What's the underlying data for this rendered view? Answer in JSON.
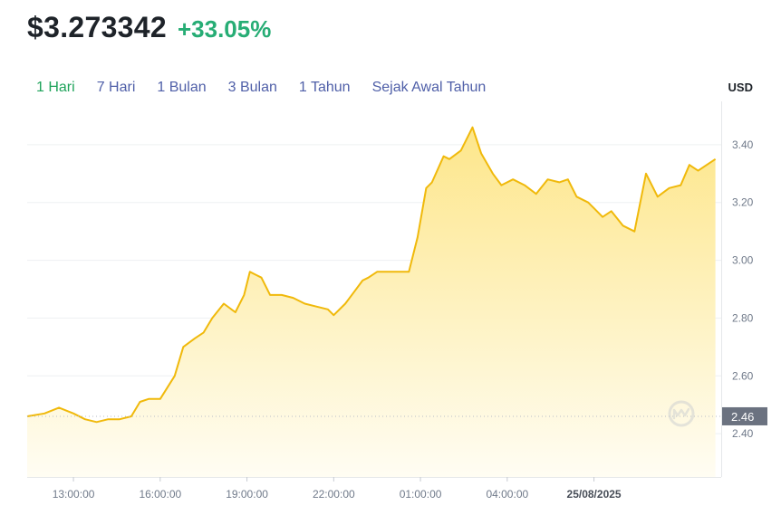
{
  "header": {
    "price": "$3.273342",
    "change": "+33.05%"
  },
  "tabs": [
    {
      "label": "1 Hari",
      "active": true
    },
    {
      "label": "7 Hari",
      "active": false
    },
    {
      "label": "1 Bulan",
      "active": false
    },
    {
      "label": "3 Bulan",
      "active": false
    },
    {
      "label": "1 Tahun",
      "active": false
    },
    {
      "label": "Sejak Awal Tahun",
      "active": false
    }
  ],
  "currency": "USD",
  "current_price_tag": "2.46",
  "colors": {
    "line": "#f0b90b",
    "fill_top": "#fde68a",
    "fill_bottom": "#fffdf3",
    "tag_bg": "#6b7280",
    "positive": "#27ad75",
    "active_tab": "#1ea35a",
    "tab": "#4f5fa8"
  },
  "icons": {
    "watermark": "coinmarketcap-logo-icon"
  },
  "chart_data": {
    "type": "area",
    "ylabel": "USD",
    "ylim": [
      2.25,
      3.55
    ],
    "y_ticks": [
      "3.40",
      "3.20",
      "3.00",
      "2.80",
      "2.60",
      "2.40"
    ],
    "x_ticks": [
      "13:00:00",
      "16:00:00",
      "19:00:00",
      "22:00:00",
      "01:00:00",
      "04:00:00",
      "25/08/2025"
    ],
    "x_tick_hours": [
      13,
      16,
      19,
      22,
      25,
      28,
      31
    ],
    "xlim_hours": [
      11.4,
      35.4
    ],
    "reference_line": 2.46,
    "series": [
      {
        "x": [
          11.4,
          12.0,
          12.5,
          13.0,
          13.4,
          13.8,
          14.2,
          14.6,
          15.0,
          15.3,
          15.6,
          16.0,
          16.5,
          16.8,
          17.2,
          17.5,
          17.8,
          18.2,
          18.6,
          18.9,
          19.1,
          19.3,
          19.5,
          19.8,
          20.2,
          20.6,
          21.0,
          21.4,
          21.8,
          22.0,
          22.4,
          22.7,
          23.0,
          23.2,
          23.5,
          24.0,
          24.6,
          24.9,
          25.2,
          25.4,
          25.8,
          26.0,
          26.4,
          26.8,
          27.1,
          27.5,
          27.8,
          28.2,
          28.6,
          29.0,
          29.4,
          29.8,
          30.1,
          30.4,
          30.8,
          31.0,
          31.3,
          31.6,
          32.0,
          32.4,
          32.8,
          33.2,
          33.6,
          34.0,
          34.3,
          34.6,
          34.9,
          35.2
        ],
        "y": [
          2.46,
          2.47,
          2.49,
          2.47,
          2.45,
          2.44,
          2.45,
          2.45,
          2.46,
          2.51,
          2.52,
          2.52,
          2.6,
          2.7,
          2.73,
          2.75,
          2.8,
          2.85,
          2.82,
          2.88,
          2.96,
          2.95,
          2.94,
          2.88,
          2.88,
          2.87,
          2.85,
          2.84,
          2.83,
          2.81,
          2.85,
          2.89,
          2.93,
          2.94,
          2.96,
          2.96,
          2.96,
          3.08,
          3.25,
          3.27,
          3.36,
          3.35,
          3.38,
          3.46,
          3.37,
          3.3,
          3.26,
          3.28,
          3.26,
          3.23,
          3.28,
          3.27,
          3.28,
          3.22,
          3.2,
          3.18,
          3.15,
          3.17,
          3.12,
          3.1,
          3.3,
          3.22,
          3.25,
          3.26,
          3.33,
          3.31,
          3.33,
          3.35
        ]
      }
    ]
  }
}
